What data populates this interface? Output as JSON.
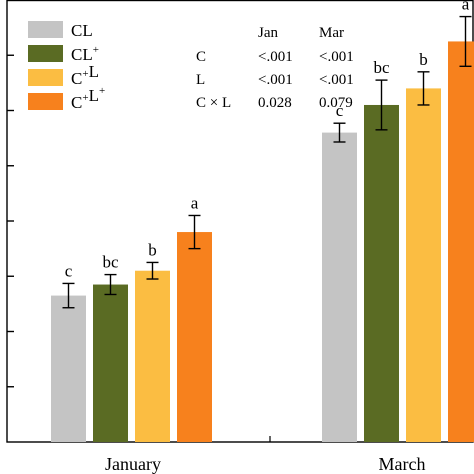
{
  "chart_data": {
    "type": "bar",
    "categories": [
      "January",
      "March"
    ],
    "series": [
      {
        "name": "CL",
        "color": "#c4c4c4",
        "values": [
          2.65,
          5.6
        ],
        "errors": [
          0.22,
          0.17
        ],
        "letters": [
          "c",
          "c"
        ]
      },
      {
        "name": "CL+",
        "color": "#5a6b23",
        "values": [
          2.85,
          6.1
        ],
        "errors": [
          0.18,
          0.45
        ],
        "letters": [
          "bc",
          "bc"
        ]
      },
      {
        "name": "C+L",
        "color": "#fbbd42",
        "values": [
          3.1,
          6.4
        ],
        "errors": [
          0.15,
          0.3
        ],
        "letters": [
          "b",
          "b"
        ]
      },
      {
        "name": "C+L+",
        "color": "#f7811d",
        "values": [
          3.8,
          7.25
        ],
        "errors": [
          0.3,
          0.45
        ],
        "letters": [
          "a",
          "a"
        ]
      }
    ],
    "ylim": [
      0,
      8
    ],
    "xlabel": "",
    "ylabel": "",
    "legend": [
      {
        "base": "CL",
        "sup1": "",
        "mid": "",
        "sup2": ""
      },
      {
        "base": "CL",
        "sup1": "",
        "mid": "",
        "sup2": "+"
      },
      {
        "base": "C",
        "sup1": "+",
        "mid": "L",
        "sup2": ""
      },
      {
        "base": "C",
        "sup1": "+",
        "mid": "L",
        "sup2": "+"
      }
    ],
    "stats_table": {
      "columns": [
        "Jan",
        "Mar"
      ],
      "rows": [
        {
          "label": "C",
          "values": [
            "<.001",
            "<.001"
          ]
        },
        {
          "label": "L",
          "values": [
            "<.001",
            "<.001"
          ]
        },
        {
          "label": "C × L",
          "values": [
            "0.028",
            "0.079"
          ]
        }
      ]
    }
  }
}
